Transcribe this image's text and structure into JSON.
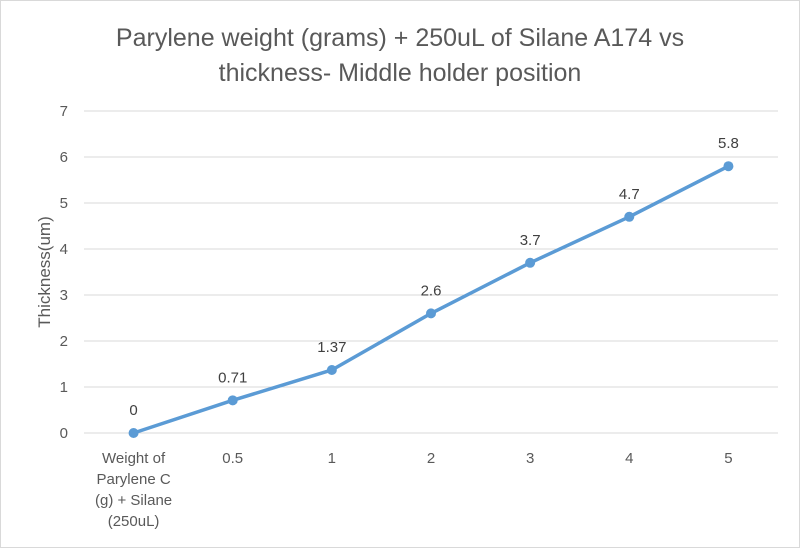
{
  "chart_data": {
    "type": "line",
    "title_lines": [
      "Parylene weight (grams) + 250uL of Silane A174 vs",
      "thickness- Middle holder position"
    ],
    "xlabel": "",
    "ylabel": "Thickness(um)",
    "categories": [
      [
        "Weight of",
        "Parylene C",
        "(g) + Silane",
        "(250uL)"
      ],
      [
        "0.5"
      ],
      [
        "1"
      ],
      [
        "2"
      ],
      [
        "3"
      ],
      [
        "4"
      ],
      [
        "5"
      ]
    ],
    "series": [
      {
        "values": [
          0,
          0.71,
          1.37,
          2.6,
          3.7,
          4.7,
          5.8
        ],
        "labels": [
          "0",
          "0.71",
          "1.37",
          "2.6",
          "3.7",
          "4.7",
          "5.8"
        ],
        "color": "#5b9bd5"
      }
    ],
    "ylim": [
      0,
      7
    ],
    "yticks": [
      0,
      1,
      2,
      3,
      4,
      5,
      6,
      7
    ],
    "grid": true,
    "legend": "none"
  },
  "colors": {
    "gridline": "#d9d9d9",
    "line": "#5b9bd5",
    "text": "#595959"
  }
}
